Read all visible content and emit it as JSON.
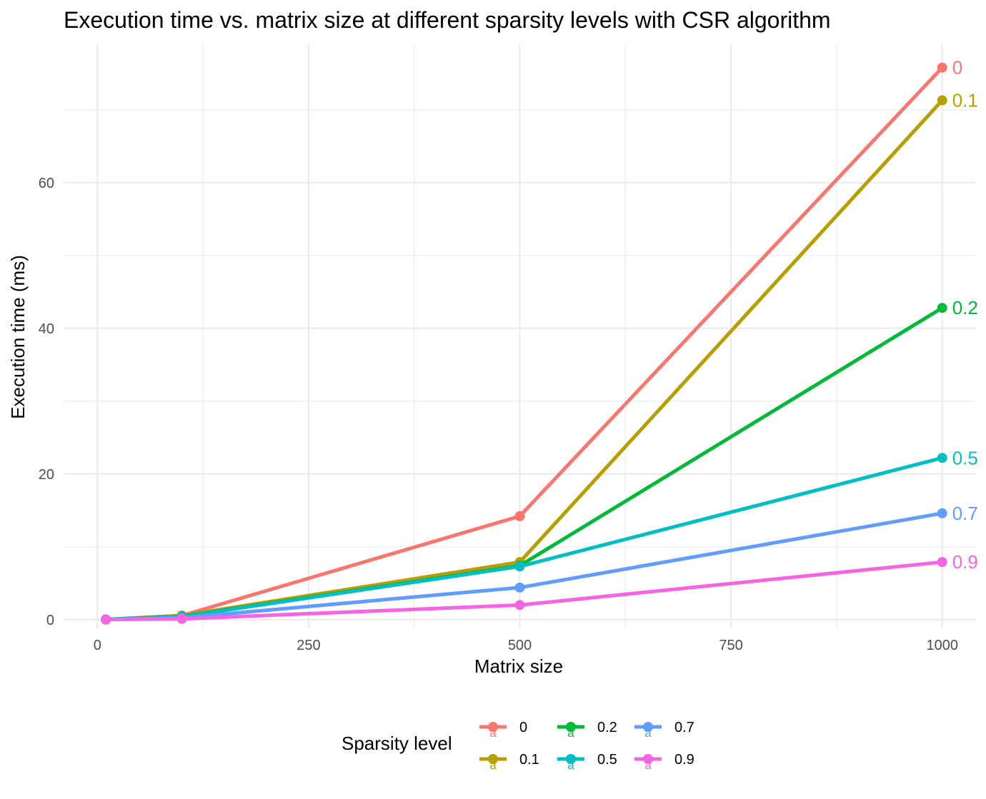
{
  "chart_data": {
    "type": "line",
    "title": "Execution time vs. matrix size at different sparsity levels with CSR algorithm",
    "xlabel": "Matrix size",
    "ylabel": "Execution time (ms)",
    "x_ticks": [
      0,
      250,
      500,
      750,
      1000
    ],
    "y_ticks": [
      0,
      20,
      40,
      60
    ],
    "xlim": [
      -40,
      1040
    ],
    "ylim": [
      -1.2,
      79.0
    ],
    "grid": true,
    "legend": {
      "title": "Sparsity level",
      "position": "bottom",
      "glyph": "a"
    },
    "x": [
      10,
      100,
      500,
      1000
    ],
    "series": [
      {
        "name": "0",
        "color": "#F8766D",
        "values": [
          0.02,
          0.55,
          14.2,
          75.8
        ]
      },
      {
        "name": "0.1",
        "color": "#B79F00",
        "values": [
          0.02,
          0.55,
          7.9,
          71.3
        ]
      },
      {
        "name": "0.2",
        "color": "#00BA38",
        "values": [
          0.02,
          0.45,
          7.4,
          42.8
        ]
      },
      {
        "name": "0.5",
        "color": "#00BFC4",
        "values": [
          0.02,
          0.4,
          7.3,
          22.2
        ]
      },
      {
        "name": "0.7",
        "color": "#619CFF",
        "values": [
          0.01,
          0.25,
          4.4,
          14.6
        ]
      },
      {
        "name": "0.9",
        "color": "#F564E3",
        "values": [
          0.01,
          0.1,
          2.0,
          7.9
        ]
      }
    ]
  }
}
